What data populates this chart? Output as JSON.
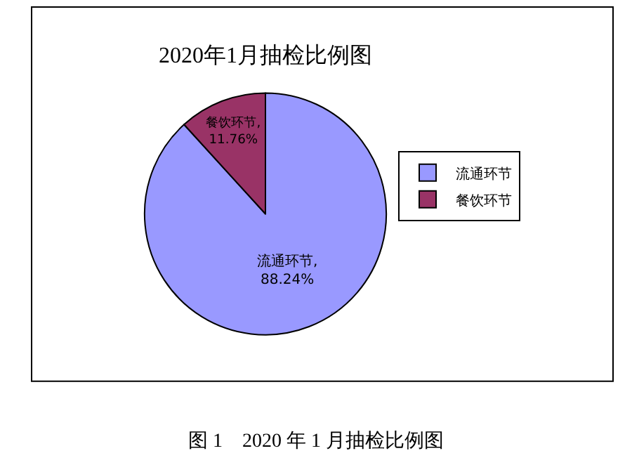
{
  "chart_data": {
    "type": "pie",
    "title": "2020年1月抽检比例图",
    "categories": [
      "流通环节",
      "餐饮环节"
    ],
    "values": [
      88.24,
      11.76
    ],
    "colors": [
      "#9999ff",
      "#993366"
    ],
    "value_labels": [
      "流通环节,\n88.24%",
      "餐饮环节,\n11.76%"
    ],
    "legend": "right",
    "annotations": [
      "图 1　2020 年 1 月抽检比例图"
    ]
  }
}
